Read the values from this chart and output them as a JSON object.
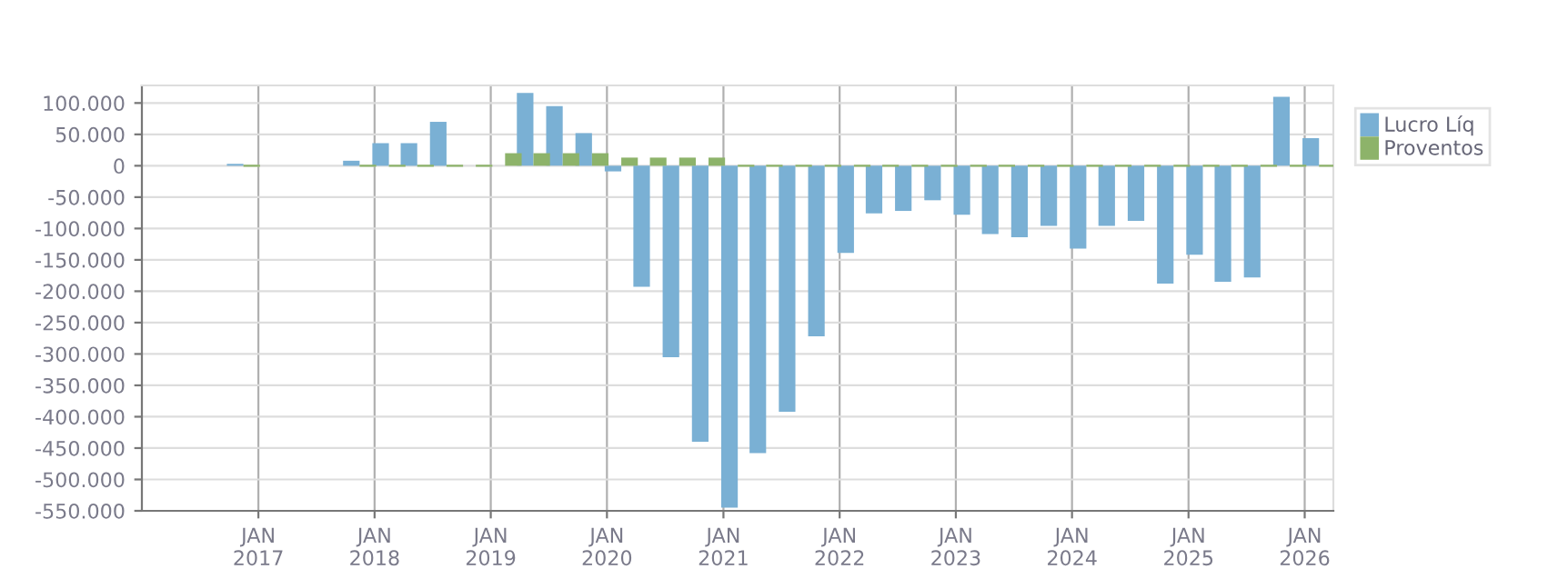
{
  "chart_data": {
    "type": "bar",
    "x": [
      "2016-11-15",
      "2017-02-15",
      "2017-05-15",
      "2017-08-15",
      "2017-11-15",
      "2018-02-15",
      "2018-05-15",
      "2018-08-15",
      "2018-11-15",
      "2019-02-15",
      "2019-05-15",
      "2019-08-15",
      "2019-11-15",
      "2020-02-15",
      "2020-05-15",
      "2020-08-15",
      "2020-11-15",
      "2021-02-15",
      "2021-05-15",
      "2021-08-15",
      "2021-11-15",
      "2022-02-15",
      "2022-05-15",
      "2022-08-15",
      "2022-11-15",
      "2023-02-15",
      "2023-05-15",
      "2023-08-15",
      "2023-11-15",
      "2024-02-15",
      "2024-05-15",
      "2024-08-15",
      "2024-11-15",
      "2025-02-15",
      "2025-05-15",
      "2025-08-15",
      "2025-11-15",
      "2026-02-15"
    ],
    "series": [
      {
        "name": "Lucro Líq",
        "color": "#7ab0d4",
        "values": [
          3000,
          null,
          null,
          null,
          8000,
          36000,
          36000,
          70000,
          null,
          null,
          116000,
          95000,
          52000,
          -9000,
          -193000,
          -305000,
          -440000,
          -545000,
          -458000,
          -392000,
          -272000,
          -139000,
          -76000,
          -72000,
          -55000,
          -78000,
          -109000,
          -114000,
          -96000,
          -132000,
          -96000,
          -88000,
          -188000,
          -142000,
          -185000,
          -178000,
          110000,
          44000
        ]
      },
      {
        "name": "Proventos",
        "color": "#8db36a",
        "values": [
          0,
          null,
          null,
          null,
          0,
          0,
          0,
          0,
          0,
          20000,
          20000,
          20000,
          20000,
          13000,
          13000,
          13000,
          13000,
          0,
          0,
          0,
          0,
          0,
          0,
          0,
          0,
          0,
          0,
          0,
          0,
          0,
          0,
          0,
          0,
          0,
          0,
          0,
          0,
          0
        ]
      }
    ],
    "xlim": [
      "2016-01-01",
      "2026-04-01"
    ],
    "xticks": [
      {
        "value": "2017-01-01",
        "label": "JAN\n2017"
      },
      {
        "value": "2018-01-01",
        "label": "JAN\n2018"
      },
      {
        "value": "2019-01-01",
        "label": "JAN\n2019"
      },
      {
        "value": "2020-01-01",
        "label": "JAN\n2020"
      },
      {
        "value": "2021-01-01",
        "label": "JAN\n2021"
      },
      {
        "value": "2022-01-01",
        "label": "JAN\n2022"
      },
      {
        "value": "2023-01-01",
        "label": "JAN\n2023"
      },
      {
        "value": "2024-01-01",
        "label": "JAN\n2024"
      },
      {
        "value": "2025-01-01",
        "label": "JAN\n2025"
      },
      {
        "value": "2026-01-01",
        "label": "JAN\n2026"
      }
    ],
    "ylim": [
      -550000,
      128000
    ],
    "yticks": [
      {
        "value": 100000,
        "label": "100.000"
      },
      {
        "value": 50000,
        "label": "50.000"
      },
      {
        "value": 0,
        "label": "0"
      },
      {
        "value": -50000,
        "label": "-50.000"
      },
      {
        "value": -100000,
        "label": "-100.000"
      },
      {
        "value": -150000,
        "label": "-150.000"
      },
      {
        "value": -200000,
        "label": "-200.000"
      },
      {
        "value": -250000,
        "label": "-250.000"
      },
      {
        "value": -300000,
        "label": "-300.000"
      },
      {
        "value": -350000,
        "label": "-350.000"
      },
      {
        "value": -400000,
        "label": "-400.000"
      },
      {
        "value": -450000,
        "label": "-450.000"
      },
      {
        "value": -500000,
        "label": "-500.000"
      },
      {
        "value": -550000,
        "label": "-550.000"
      }
    ],
    "grid": true,
    "legend": "top right"
  }
}
